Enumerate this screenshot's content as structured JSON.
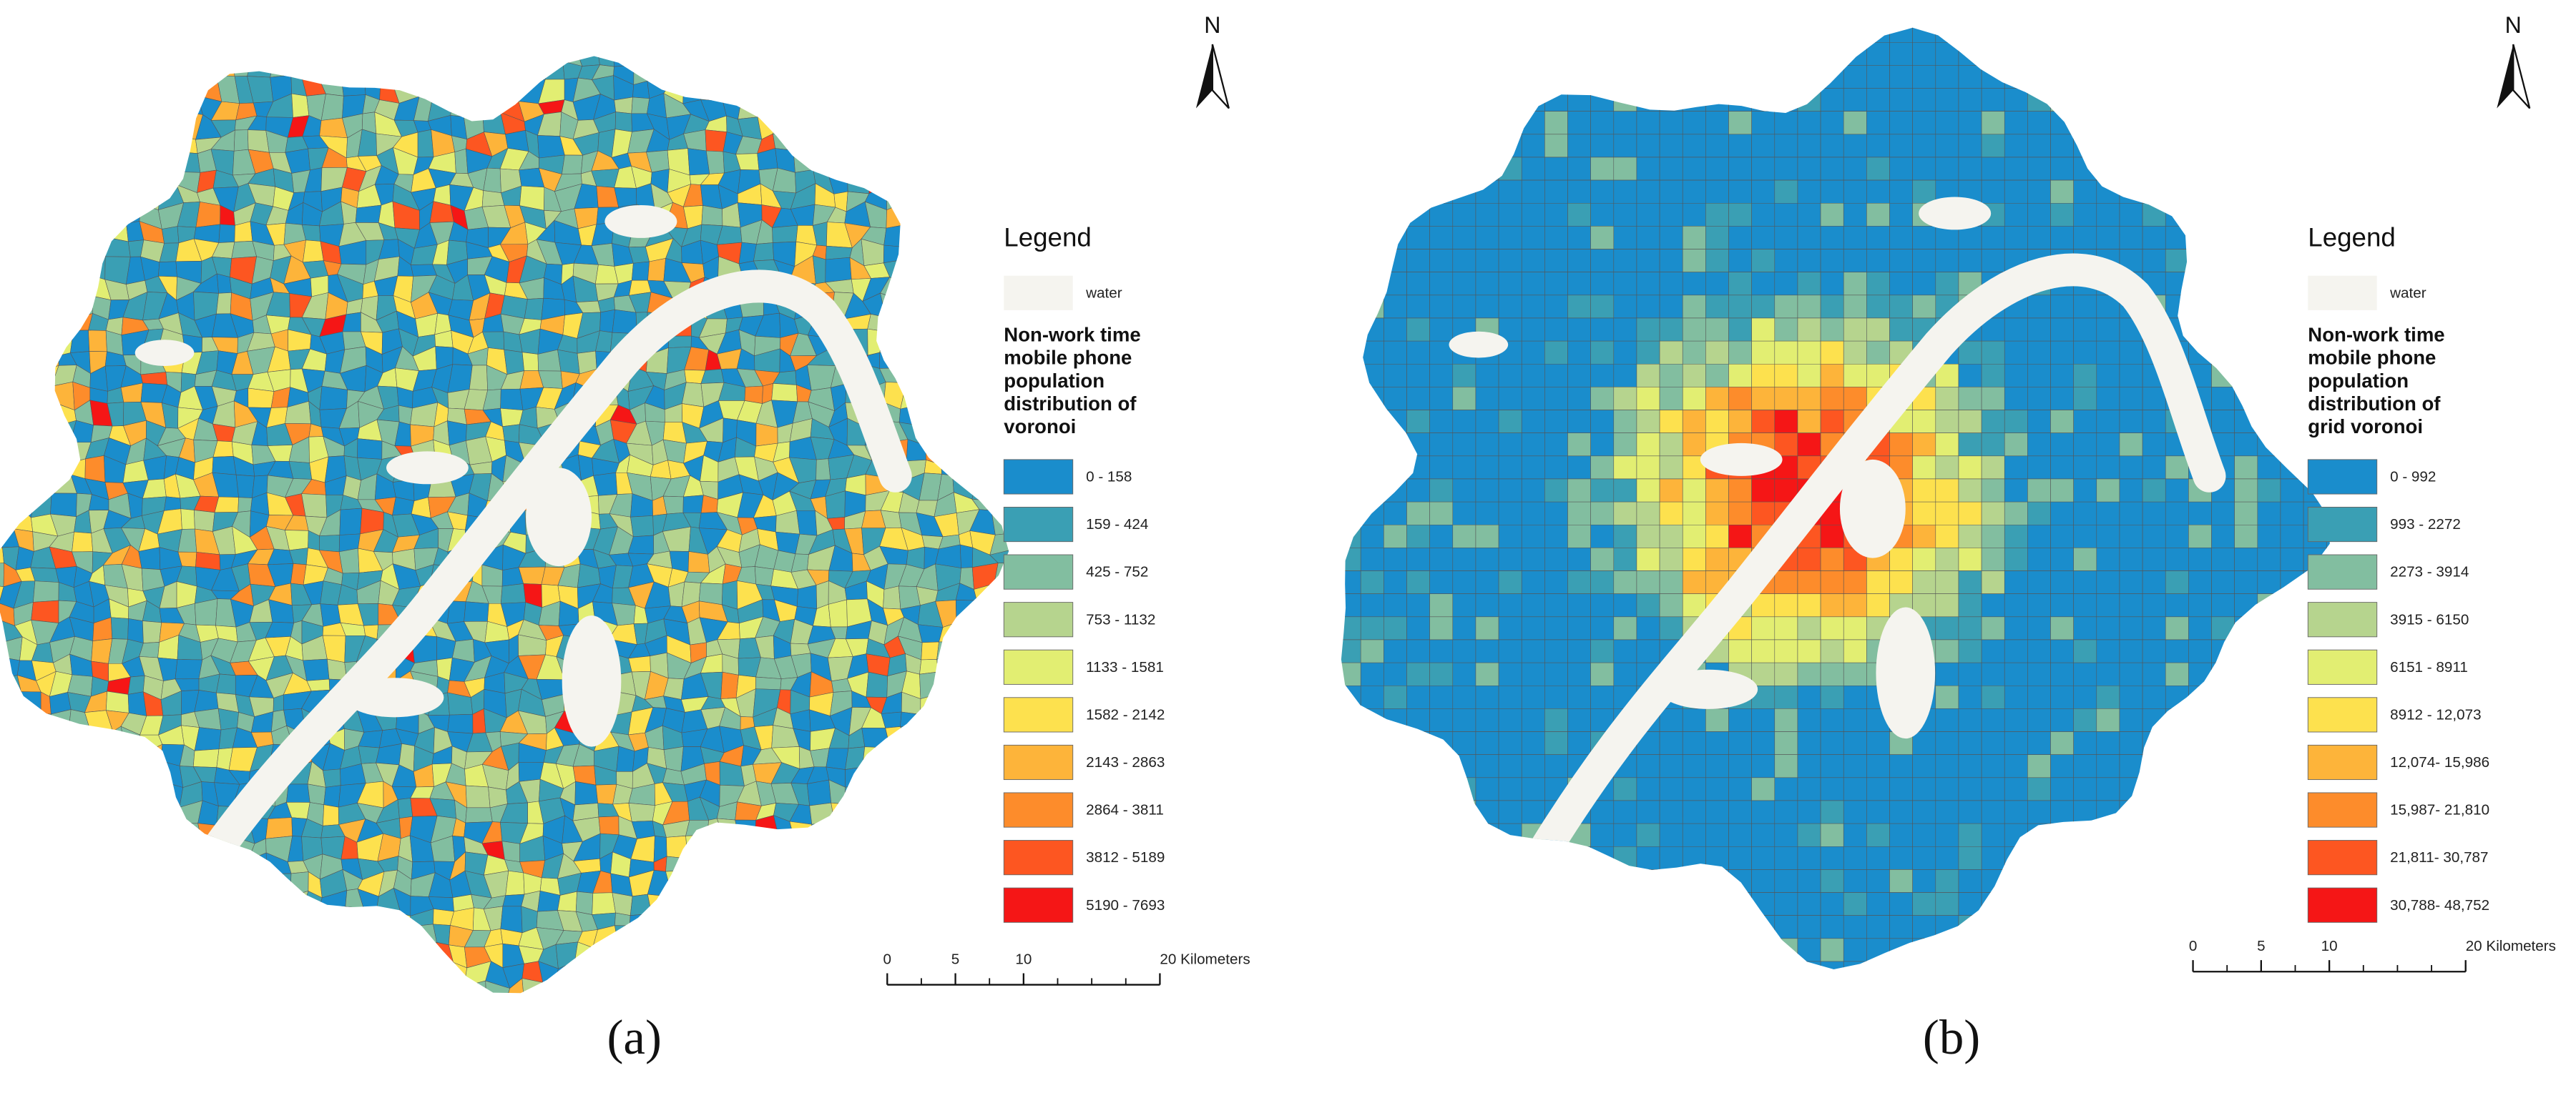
{
  "panels": [
    {
      "label": "(a)",
      "north": "N",
      "legend": {
        "title": "Legend",
        "water": "water",
        "heading": "Non-work time mobile phone population distribution of voronoi",
        "classes": [
          {
            "label": "0 - 158",
            "color": "#1a8dcc"
          },
          {
            "label": "159 - 424",
            "color": "#3a9fb4"
          },
          {
            "label": "425 - 752",
            "color": "#82bea0"
          },
          {
            "label": "753 - 1132",
            "color": "#b6d48e"
          },
          {
            "label": "1133 - 1581",
            "color": "#e2ee72"
          },
          {
            "label": "1582 - 2142",
            "color": "#fde14e"
          },
          {
            "label": "2143 - 2863",
            "color": "#fdb43a"
          },
          {
            "label": "2864 - 3811",
            "color": "#fd8c2b"
          },
          {
            "label": "3812 - 5189",
            "color": "#fd5621"
          },
          {
            "label": "5190 - 7693",
            "color": "#f51616"
          }
        ]
      },
      "scale": {
        "ticks": [
          0,
          5,
          10,
          {
            "value": 20,
            "label": "20 Kilometers"
          }
        ]
      }
    },
    {
      "label": "(b)",
      "north": "N",
      "legend": {
        "title": "Legend",
        "water": "water",
        "heading": "Non-work time mobile phone population distribution of grid voronoi",
        "classes": [
          {
            "label": "0 - 992",
            "color": "#1a8dcc"
          },
          {
            "label": "993 - 2272",
            "color": "#3a9fb4"
          },
          {
            "label": "2273 - 3914",
            "color": "#82bea0"
          },
          {
            "label": "3915 - 6150",
            "color": "#b6d48e"
          },
          {
            "label": "6151 - 8911",
            "color": "#e2ee72"
          },
          {
            "label": "8912 - 12,073",
            "color": "#fde14e"
          },
          {
            "label": "12,074- 15,986",
            "color": "#fdb43a"
          },
          {
            "label": "15,987- 21,810",
            "color": "#fd8c2b"
          },
          {
            "label": "21,811- 30,787",
            "color": "#fd5621"
          },
          {
            "label": "30,788- 48,752",
            "color": "#f51616"
          }
        ]
      },
      "scale": {
        "ticks": [
          0,
          5,
          10,
          {
            "value": 20,
            "label": "20 Kilometers"
          }
        ]
      }
    }
  ]
}
